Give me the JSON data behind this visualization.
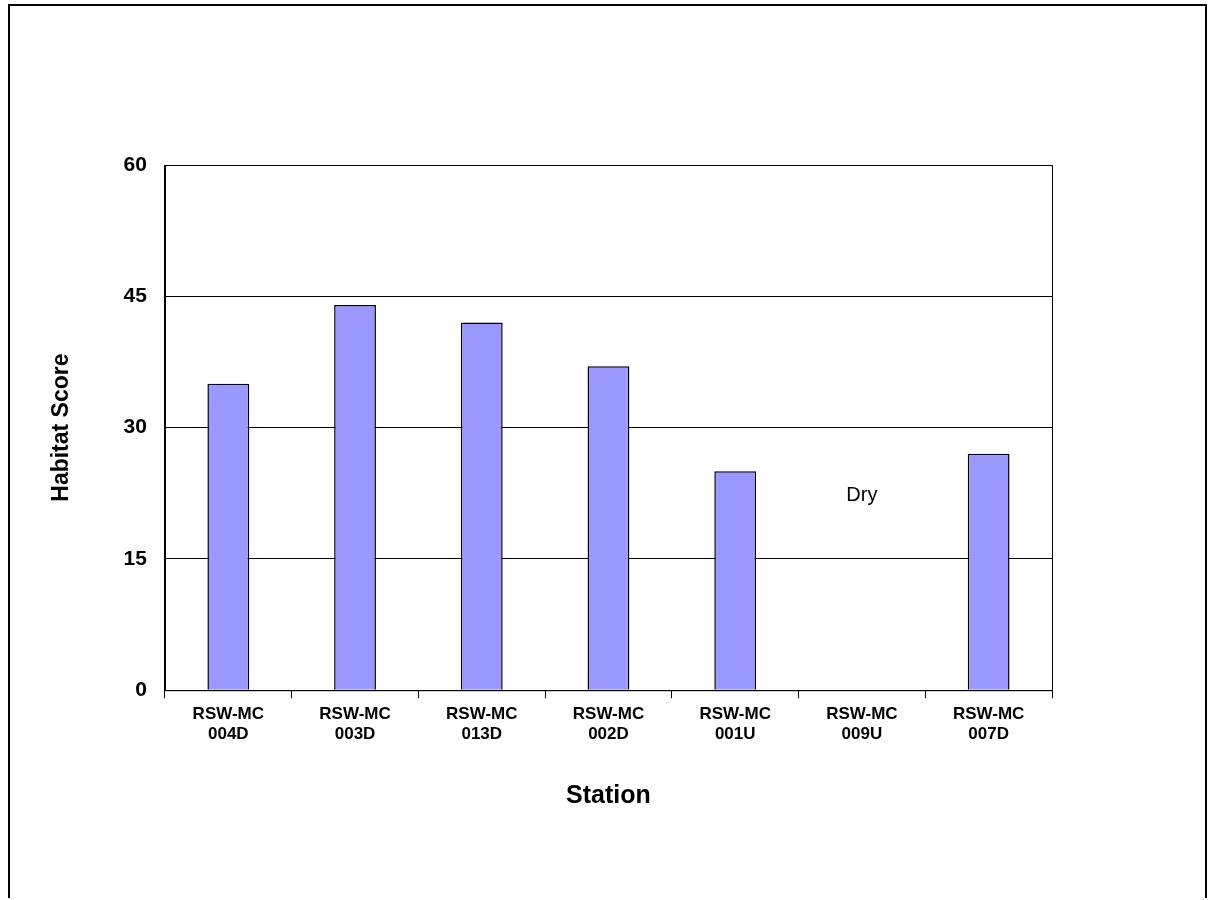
{
  "chart_data": {
    "type": "bar",
    "xlabel": "Station",
    "ylabel": "Habitat Score",
    "categories": [
      "RSW-MC\n004D",
      "RSW-MC\n003D",
      "RSW-MC\n013D",
      "RSW-MC\n002D",
      "RSW-MC\n001U",
      "RSW-MC\n009U",
      "RSW-MC\n007D"
    ],
    "values": [
      35,
      44,
      42,
      37,
      25,
      null,
      27
    ],
    "color": "#9999ff",
    "ylim": [
      0,
      60
    ],
    "yticks": [
      0,
      15,
      30,
      45,
      60
    ],
    "grid": "y",
    "legend": false,
    "annotations": [
      "Dry"
    ]
  }
}
